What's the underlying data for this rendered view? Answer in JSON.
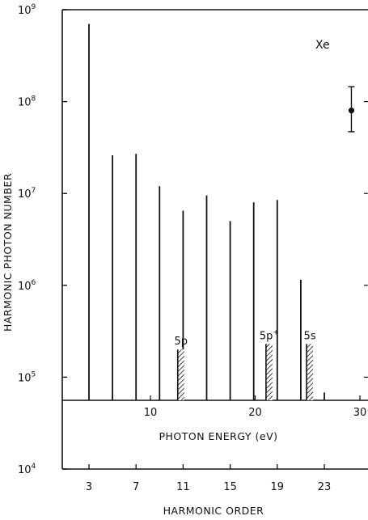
{
  "chart_data": {
    "type": "bar",
    "title": "",
    "element_label": "Xe",
    "ylabel": "HARMONIC PHOTON NUMBER",
    "xlabel_top": "PHOTON ENERGY (eV)",
    "xlabel_bottom": "HARMONIC ORDER",
    "yscale": "log",
    "ylim": [
      10000,
      1000000000
    ],
    "y_ticks": [
      {
        "value": 10000,
        "base": "10",
        "exp": "4"
      },
      {
        "value": 100000,
        "base": "10",
        "exp": "5"
      },
      {
        "value": 1000000,
        "base": "10",
        "exp": "6"
      },
      {
        "value": 10000000,
        "base": "10",
        "exp": "7"
      },
      {
        "value": 100000000,
        "base": "10",
        "exp": "8"
      },
      {
        "value": 1000000000,
        "base": "10",
        "exp": "9"
      }
    ],
    "energy_ticks": [
      {
        "energy": 10,
        "label": "10"
      },
      {
        "energy": 20,
        "label": "20"
      },
      {
        "energy": 30,
        "label": "30"
      }
    ],
    "order_ticks": [
      {
        "order": 3,
        "label": "3"
      },
      {
        "order": 7,
        "label": "7"
      },
      {
        "order": 11,
        "label": "11"
      },
      {
        "order": 15,
        "label": "15"
      },
      {
        "order": 19,
        "label": "19"
      },
      {
        "order": 23,
        "label": "23"
      }
    ],
    "baseline_value": 55000,
    "harmonics": [
      {
        "order": 3,
        "value": 700000000
      },
      {
        "order": 5,
        "value": 26000000
      },
      {
        "order": 7,
        "value": 27000000
      },
      {
        "order": 9,
        "value": 12000000
      },
      {
        "order": 11,
        "value": 6500000
      },
      {
        "order": 13,
        "value": 9500000
      },
      {
        "order": 15,
        "value": 5000000
      },
      {
        "order": 17,
        "value": 8000000
      },
      {
        "order": 19,
        "value": 8500000
      },
      {
        "order": 21,
        "value": 1150000
      },
      {
        "order": 23,
        "value": 68000
      }
    ],
    "thresholds": [
      {
        "label": "5p",
        "sup": "",
        "order": 10.75,
        "value": 200000
      },
      {
        "label": "5p",
        "sup": "+",
        "order": 18.25,
        "value": 230000
      },
      {
        "label": "5s",
        "sup": "",
        "order": 21.7,
        "value": 230000
      }
    ],
    "error_bar": {
      "order": 25.3,
      "value": 80000000,
      "low": 47000000,
      "high": 145000000
    },
    "grid": false,
    "colors": {
      "ink": "#111111",
      "background": "#ffffff"
    }
  }
}
